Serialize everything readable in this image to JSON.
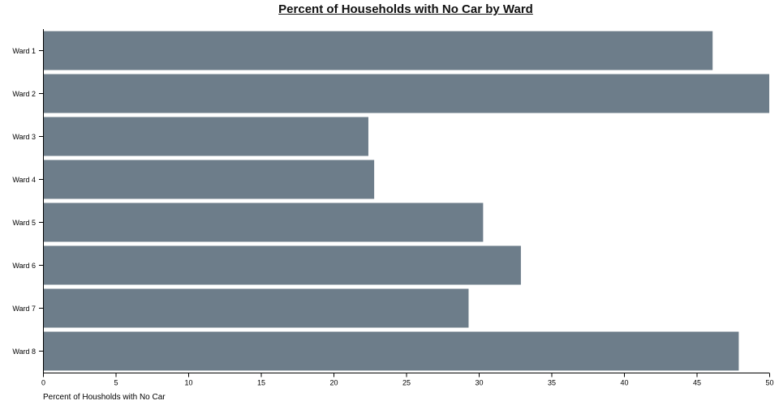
{
  "colors": {
    "bar": "#6d7d8a",
    "axis": "#000000",
    "background": "#ffffff"
  },
  "chart_data": {
    "type": "bar",
    "orientation": "horizontal",
    "title": "Percent of Households with No Car by Ward",
    "xlabel": "Percent of Housholds with No Car",
    "ylabel": "",
    "categories": [
      "Ward 1",
      "Ward 2",
      "Ward 3",
      "Ward 4",
      "Ward 5",
      "Ward 6",
      "Ward 7",
      "Ward 8"
    ],
    "values": [
      46.1,
      50.1,
      22.4,
      22.8,
      30.3,
      32.9,
      29.3,
      47.9
    ],
    "xlim": [
      0,
      50
    ],
    "x_ticks": [
      0,
      5,
      10,
      15,
      20,
      25,
      30,
      35,
      40,
      45,
      50
    ],
    "grid": false,
    "legend": "none"
  }
}
